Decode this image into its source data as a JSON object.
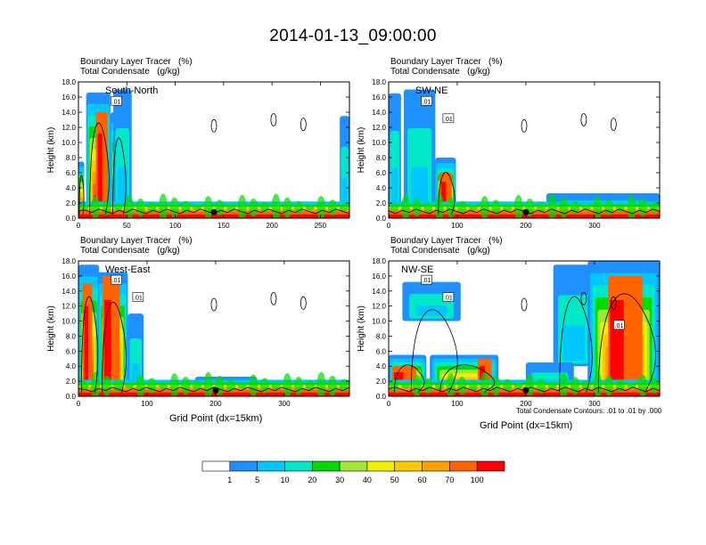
{
  "title": "2014-01-13_09:00:00",
  "panels": [
    {
      "id": "south-north",
      "header_line1": "Boundary Layer Tracer   (%)",
      "header_line2": "Total Condensate   (g/kg)",
      "cross_section_label": "South-North",
      "ylabel": "Height (km)",
      "xlabel": "",
      "xlim": [
        0,
        280
      ],
      "xticks": [
        0,
        50,
        100,
        150,
        200,
        250
      ],
      "ylim": [
        0,
        18
      ],
      "yticks": [
        "0.0",
        "2.0",
        "4.0",
        "6.0",
        "8.0",
        "10.0",
        "12.0",
        "14.0",
        "16.0",
        "18.0"
      ],
      "contour_labels": [
        ".01"
      ],
      "marker_x": 140
    },
    {
      "id": "sw-ne",
      "header_line1": "Boundary Layer Tracer   (%)",
      "header_line2": "Total Condensate   (g/kg)",
      "cross_section_label": "SW-NE",
      "ylabel": "Height (km)",
      "xlabel": "",
      "xlim": [
        0,
        395
      ],
      "xticks": [
        0,
        100,
        200,
        300
      ],
      "ylim": [
        0,
        18
      ],
      "yticks": [
        "0.0",
        "2.0",
        "4.0",
        "6.0",
        "8.0",
        "10.0",
        "12.0",
        "14.0",
        "16.0",
        "18.0"
      ],
      "contour_labels": [
        ".01",
        ".01"
      ],
      "marker_x": 200
    },
    {
      "id": "west-east",
      "header_line1": "Boundary Layer Tracer   (%)",
      "header_line2": "Total Condensate   (g/kg)",
      "cross_section_label": "West-East",
      "ylabel": "Height (km)",
      "xlabel": "Grid Point (dx=15km)",
      "xlim": [
        0,
        395
      ],
      "xticks": [
        0,
        100,
        200,
        300
      ],
      "ylim": [
        0,
        18
      ],
      "yticks": [
        "0.0",
        "2.0",
        "4.0",
        "6.0",
        "8.0",
        "10.0",
        "12.0",
        "14.0",
        "16.0",
        "18.0"
      ],
      "contour_labels": [
        ".01",
        ".01"
      ],
      "marker_x": 200
    },
    {
      "id": "nw-se",
      "header_line1": "Boundary Layer Tracer   (%)",
      "header_line2": "Total Condensate   (g/kg)",
      "cross_section_label": "NW-SE",
      "ylabel": "Height (km)",
      "xlabel": "Grid Point (dx=15km)",
      "xlim": [
        0,
        395
      ],
      "xticks": [
        0,
        100,
        200,
        300
      ],
      "ylim": [
        0,
        18
      ],
      "yticks": [
        "0.0",
        "2.0",
        "4.0",
        "6.0",
        "8.0",
        "10.0",
        "12.0",
        "14.0",
        "16.0",
        "18.0"
      ],
      "contour_labels": [
        ".01",
        ".01",
        ".01"
      ],
      "marker_x": 200
    }
  ],
  "footnote": "Total Condensate Contours: .01 to .01 by .000",
  "colorbar": {
    "colors": [
      "#ffffff",
      "#1e90ff",
      "#00c8ff",
      "#00e8c8",
      "#00dc00",
      "#a0e632",
      "#f0f000",
      "#ffc800",
      "#ffa000",
      "#ff6400",
      "#ff0000"
    ],
    "labels": [
      "1",
      "5",
      "10",
      "20",
      "30",
      "40",
      "50",
      "60",
      "70",
      "100"
    ]
  },
  "chart_data": {
    "type": "heatmap",
    "title": "2014-01-13_09:00:00",
    "variables": [
      "Boundary Layer Tracer (%)",
      "Total Condensate (g/kg)"
    ],
    "shading_levels": [
      1,
      5,
      10,
      20,
      30,
      40,
      50,
      60,
      70,
      100
    ],
    "contour_levels": [
      0.01
    ],
    "panels": [
      {
        "name": "South-North",
        "xlim": [
          0,
          280
        ],
        "ylim_km": [
          0,
          18
        ],
        "columns": [
          {
            "x_range": [
              5,
              35
            ],
            "top_km": 16.5,
            "tracer_peak": 100
          },
          {
            "x_range": [
              0,
              280
            ],
            "top_km": 1.5,
            "tracer_peak": 100
          }
        ]
      },
      {
        "name": "SW-NE",
        "xlim": [
          0,
          395
        ],
        "ylim_km": [
          0,
          18
        ],
        "columns": [
          {
            "x_range": [
              0,
              60
            ],
            "top_km": 17.0,
            "tracer_peak": 30
          },
          {
            "x_range": [
              70,
              100
            ],
            "top_km": 8.0,
            "tracer_peak": 100
          },
          {
            "x_range": [
              0,
              395
            ],
            "top_km": 1.5,
            "tracer_peak": 100
          }
        ]
      },
      {
        "name": "West-East",
        "xlim": [
          0,
          395
        ],
        "ylim_km": [
          0,
          18
        ],
        "columns": [
          {
            "x_range": [
              0,
              80
            ],
            "top_km": 17.5,
            "tracer_peak": 100
          },
          {
            "x_range": [
              0,
              395
            ],
            "top_km": 1.5,
            "tracer_peak": 100
          }
        ]
      },
      {
        "name": "NW-SE",
        "xlim": [
          0,
          395
        ],
        "ylim_km": [
          0,
          18
        ],
        "columns": [
          {
            "x_range": [
              20,
              110
            ],
            "top_km": 15.0,
            "tracer_peak": 40
          },
          {
            "x_range": [
              250,
              395
            ],
            "top_km": 18.0,
            "tracer_peak": 100
          },
          {
            "x_range": [
              0,
              395
            ],
            "top_km": 2.0,
            "tracer_peak": 100
          }
        ]
      }
    ]
  }
}
